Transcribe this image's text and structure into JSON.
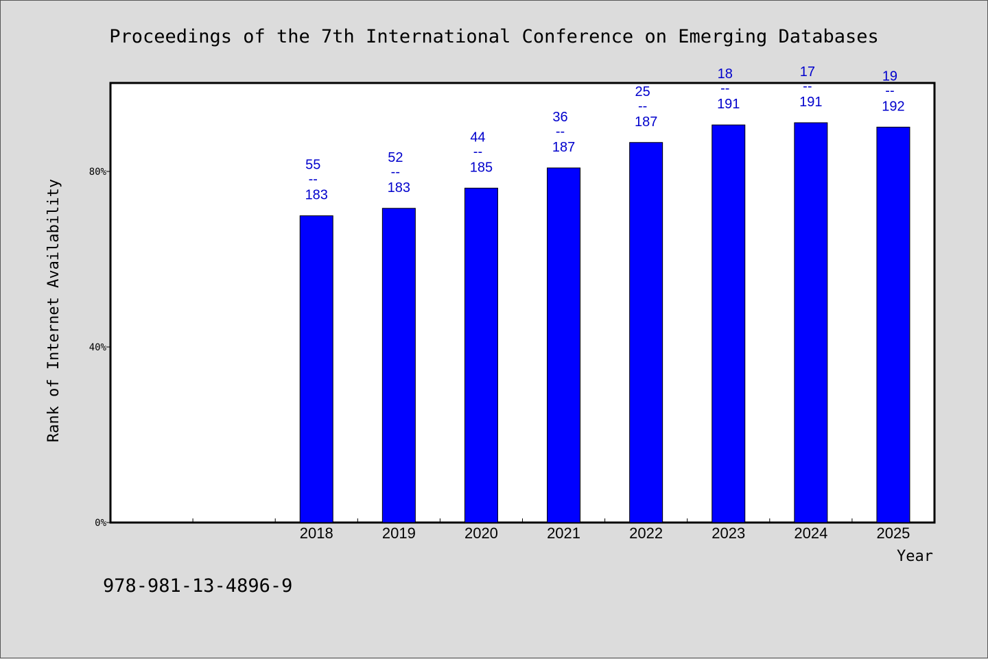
{
  "chart_data": {
    "type": "bar",
    "title": "Proceedings of the 7th International Conference on Emerging Databases",
    "xlabel": "Year",
    "ylabel": "Rank of Internet Availability",
    "categories": [
      "",
      "",
      "2018",
      "2019",
      "2020",
      "2021",
      "2022",
      "2023",
      "2024",
      "2025"
    ],
    "values": [
      null,
      null,
      69.9,
      71.6,
      76.2,
      80.8,
      86.6,
      90.6,
      91.1,
      90.1
    ],
    "bar_labels": [
      null,
      null,
      {
        "rank": "55",
        "total": "183"
      },
      {
        "rank": "52",
        "total": "183"
      },
      {
        "rank": "44",
        "total": "185"
      },
      {
        "rank": "36",
        "total": "187"
      },
      {
        "rank": "25",
        "total": "187"
      },
      {
        "rank": "18",
        "total": "191"
      },
      {
        "rank": "17",
        "total": "191"
      },
      {
        "rank": "19",
        "total": "192"
      }
    ],
    "label_separator": "--",
    "yticks": [
      {
        "value": 0,
        "label": "0%"
      },
      {
        "value": 40,
        "label": "40%"
      },
      {
        "value": 80,
        "label": "80%"
      }
    ],
    "ylim": [
      0,
      100
    ],
    "grid": false,
    "colors": {
      "bar": "#0000ff",
      "bar_label": "#0000cc",
      "background": "#dcdcdc",
      "plot_background": "#ffffff"
    }
  },
  "footer": {
    "isbn": "978-981-13-4896-9"
  }
}
